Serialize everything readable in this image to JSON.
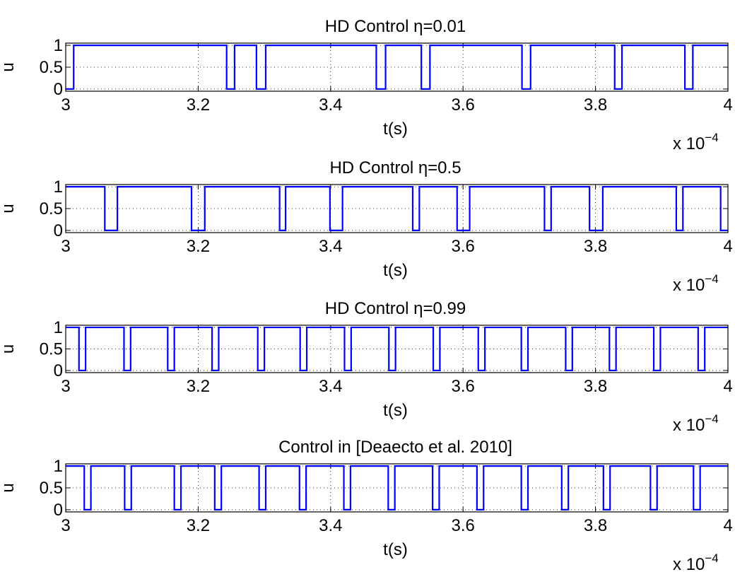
{
  "chart_data": [
    {
      "type": "line",
      "title": "HD Control η=0.01",
      "xlabel": "t(s)",
      "ylabel": "u",
      "x_multiplier": "x 10",
      "x_multiplier_exponent": "−4",
      "xlim": [
        3.0,
        4.0
      ],
      "ylim": [
        -0.05,
        1.05
      ],
      "xticks": [
        3.0,
        3.2,
        3.4,
        3.6,
        3.8,
        4.0
      ],
      "xtick_labels": [
        "3",
        "3.2",
        "3.4",
        "3.6",
        "3.8",
        "4"
      ],
      "yticks": [
        0,
        0.5,
        1
      ],
      "ytick_labels": [
        "0",
        "0.5",
        "1"
      ],
      "grid": true,
      "line_color": "#0000ff",
      "series": [
        {
          "values_note": "square wave between 0 and 1",
          "off_intervals": [
            [
              3.0,
              3.012
            ],
            [
              3.243,
              3.255
            ],
            [
              3.288,
              3.302
            ],
            [
              3.469,
              3.483
            ],
            [
              3.537,
              3.55
            ],
            [
              3.689,
              3.702
            ],
            [
              3.829,
              3.84
            ],
            [
              3.935,
              3.947
            ]
          ]
        }
      ]
    },
    {
      "type": "line",
      "title": "HD Control η=0.5",
      "xlabel": "t(s)",
      "ylabel": "u",
      "x_multiplier": "x 10",
      "x_multiplier_exponent": "−4",
      "xlim": [
        3.0,
        4.0
      ],
      "ylim": [
        -0.05,
        1.05
      ],
      "xticks": [
        3.0,
        3.2,
        3.4,
        3.6,
        3.8,
        4.0
      ],
      "xtick_labels": [
        "3",
        "3.2",
        "3.4",
        "3.6",
        "3.8",
        "4"
      ],
      "yticks": [
        0,
        0.5,
        1
      ],
      "ytick_labels": [
        "0",
        "0.5",
        "1"
      ],
      "grid": true,
      "line_color": "#0000ff",
      "series": [
        {
          "off_intervals": [
            [
              3.059,
              3.078
            ],
            [
              3.19,
              3.21
            ],
            [
              3.323,
              3.332
            ],
            [
              3.399,
              3.418
            ],
            [
              3.524,
              3.534
            ],
            [
              3.591,
              3.61
            ],
            [
              3.723,
              3.733
            ],
            [
              3.791,
              3.811
            ],
            [
              3.922,
              3.932
            ],
            [
              3.989,
              4.0
            ]
          ]
        }
      ]
    },
    {
      "type": "line",
      "title": "HD Control η=0.99",
      "xlabel": "t(s)",
      "ylabel": "u",
      "x_multiplier": "x 10",
      "x_multiplier_exponent": "−4",
      "xlim": [
        3.0,
        4.0
      ],
      "ylim": [
        -0.05,
        1.05
      ],
      "xticks": [
        3.0,
        3.2,
        3.4,
        3.6,
        3.8,
        4.0
      ],
      "xtick_labels": [
        "3",
        "3.2",
        "3.4",
        "3.6",
        "3.8",
        "4"
      ],
      "yticks": [
        0,
        0.5,
        1
      ],
      "ytick_labels": [
        "0",
        "0.5",
        "1"
      ],
      "grid": true,
      "line_color": "#0000ff",
      "series": [
        {
          "off_intervals": [
            [
              3.02,
              3.03
            ],
            [
              3.088,
              3.098
            ],
            [
              3.154,
              3.164
            ],
            [
              3.221,
              3.231
            ],
            [
              3.29,
              3.3
            ],
            [
              3.354,
              3.364
            ],
            [
              3.421,
              3.431
            ],
            [
              3.488,
              3.498
            ],
            [
              3.555,
              3.565
            ],
            [
              3.623,
              3.633
            ],
            [
              3.688,
              3.698
            ],
            [
              3.755,
              3.765
            ],
            [
              3.821,
              3.831
            ],
            [
              3.888,
              3.898
            ],
            [
              3.955,
              3.965
            ]
          ]
        }
      ]
    },
    {
      "type": "line",
      "title": "Control in [Deaecto et al. 2010]",
      "xlabel": "t(s)",
      "ylabel": "u",
      "x_multiplier": "x 10",
      "x_multiplier_exponent": "−4",
      "xlim": [
        3.0,
        4.0
      ],
      "ylim": [
        -0.05,
        1.05
      ],
      "xticks": [
        3.0,
        3.2,
        3.4,
        3.6,
        3.8,
        4.0
      ],
      "xtick_labels": [
        "3",
        "3.2",
        "3.4",
        "3.6",
        "3.8",
        "4"
      ],
      "yticks": [
        0,
        0.5,
        1
      ],
      "ytick_labels": [
        "0",
        "0.5",
        "1"
      ],
      "grid": true,
      "line_color": "#0000ff",
      "series": [
        {
          "off_intervals": [
            [
              3.028,
              3.038
            ],
            [
              3.089,
              3.099
            ],
            [
              3.164,
              3.174
            ],
            [
              3.225,
              3.235
            ],
            [
              3.292,
              3.302
            ],
            [
              3.353,
              3.363
            ],
            [
              3.42,
              3.43
            ],
            [
              3.487,
              3.497
            ],
            [
              3.554,
              3.564
            ],
            [
              3.621,
              3.631
            ],
            [
              3.688,
              3.698
            ],
            [
              3.749,
              3.759
            ],
            [
              3.812,
              3.822
            ],
            [
              3.883,
              3.893
            ],
            [
              3.948,
              3.958
            ]
          ]
        }
      ]
    }
  ]
}
